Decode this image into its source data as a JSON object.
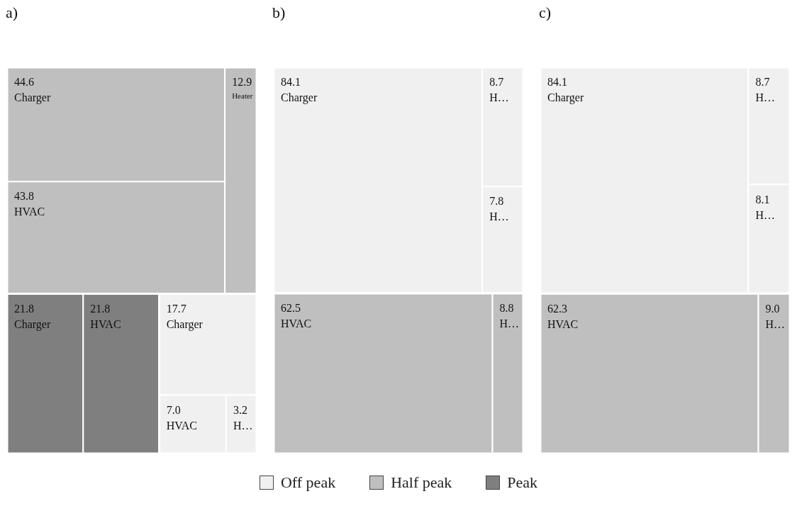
{
  "chart_data": [
    {
      "type": "other",
      "title": "a)",
      "legend": "bottom",
      "categories": [
        "Charger",
        "HVAC",
        "H…",
        "Charger",
        "HVAC",
        "Heater",
        "Charger",
        "HVAC"
      ],
      "series": [
        {
          "name": "Off peak",
          "color": "#f0f0f0",
          "values": [
            17.7,
            7.0,
            3.2,
            null,
            null,
            null,
            null,
            null
          ],
          "value_labels": [
            "17.7",
            "7.0",
            "3.2",
            null,
            null,
            null,
            null,
            null
          ]
        },
        {
          "name": "Half peak",
          "color": "#bfbfbf",
          "values": [
            null,
            null,
            null,
            44.6,
            43.8,
            12.9,
            null,
            null
          ],
          "value_labels": [
            null,
            null,
            null,
            "44.6",
            "43.8",
            "12.9",
            null,
            null
          ]
        },
        {
          "name": "Peak",
          "color": "#7f7f7f",
          "values": [
            null,
            null,
            null,
            null,
            null,
            null,
            21.8,
            21.8
          ],
          "value_labels": [
            null,
            null,
            null,
            null,
            null,
            null,
            "21.8",
            "21.8"
          ]
        }
      ]
    },
    {
      "type": "other",
      "title": "b)",
      "categories": [
        "Charger",
        "H…",
        "H…",
        "HVAC",
        "H…"
      ],
      "series": [
        {
          "color": "#f0f0f0",
          "values": [
            84.1,
            8.7,
            7.8,
            null,
            null
          ],
          "value_labels": [
            "84.1",
            "8.7",
            "7.8",
            null,
            null
          ]
        },
        {
          "color": "#bfbfbf",
          "values": [
            null,
            null,
            null,
            62.5,
            8.8
          ],
          "value_labels": [
            null,
            null,
            null,
            "62.5",
            "8.8"
          ]
        }
      ]
    },
    {
      "type": "other",
      "title": "c)",
      "categories": [
        "Charger",
        "H…",
        "H…",
        "HVAC",
        "H…"
      ],
      "series": [
        {
          "color": "#f0f0f0",
          "values": [
            84.1,
            8.7,
            8.1,
            null,
            null
          ],
          "value_labels": [
            "84.1",
            "8.7",
            "8.1",
            null,
            null
          ]
        },
        {
          "color": "#bfbfbf",
          "values": [
            null,
            null,
            null,
            62.3,
            9.0
          ],
          "value_labels": [
            null,
            null,
            null,
            "62.3",
            "9.0"
          ]
        }
      ]
    }
  ]
}
